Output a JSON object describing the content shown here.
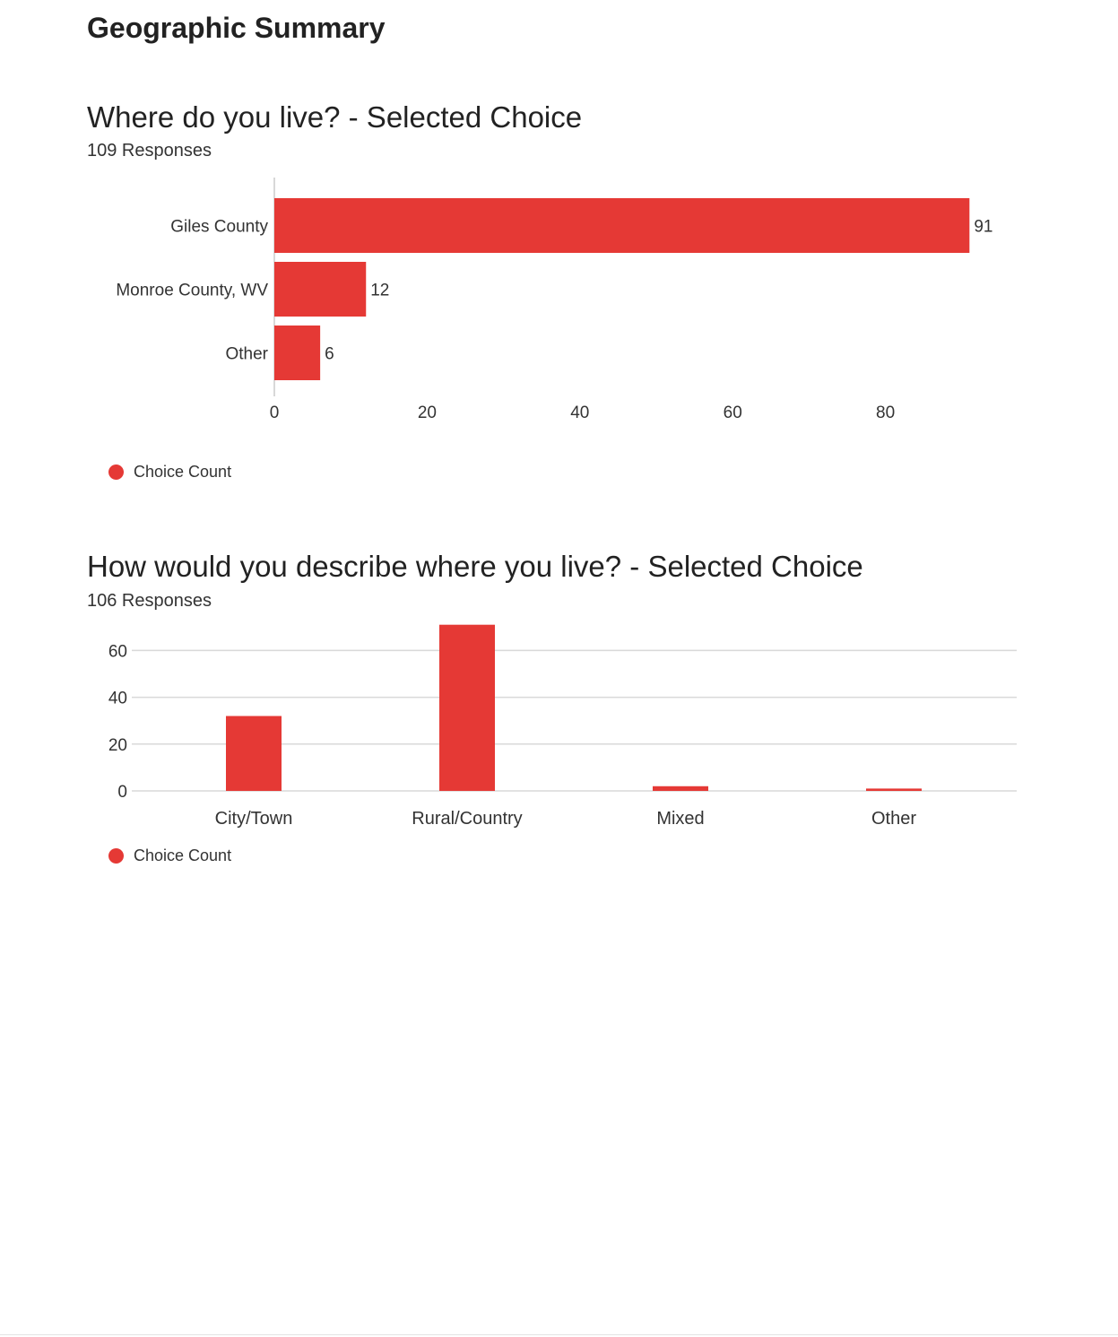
{
  "page": {
    "title": "Geographic Summary"
  },
  "colors": {
    "bar": "#e53935",
    "grid": "#d9d9d9",
    "axis": "#cccccc",
    "text": "#333333"
  },
  "questions": [
    {
      "title": "Where do you live? - Selected Choice",
      "responses": "109 Responses",
      "legend_label": "Choice Count"
    },
    {
      "title": "How would you describe where you live? - Selected Choice",
      "responses": "106 Responses",
      "legend_label": "Choice Count"
    }
  ],
  "chart_data": [
    {
      "type": "bar",
      "orientation": "horizontal",
      "title": "Where do you live? - Selected Choice",
      "subtitle": "109 Responses",
      "categories": [
        "Giles County",
        "Monroe County, WV",
        "Other"
      ],
      "series": [
        {
          "name": "Choice Count",
          "values": [
            91,
            12,
            6
          ]
        }
      ],
      "data_labels": [
        "91",
        "12",
        "6"
      ],
      "xlim": [
        0,
        100
      ],
      "xticks": [
        0,
        20,
        40,
        60,
        80
      ],
      "grid": false,
      "legend": "bottom-left"
    },
    {
      "type": "bar",
      "orientation": "vertical",
      "title": "How would you describe where you live? - Selected Choice",
      "subtitle": "106 Responses",
      "categories": [
        "City/Town",
        "Rural/Country",
        "Mixed",
        "Other"
      ],
      "series": [
        {
          "name": "Choice Count",
          "values": [
            32,
            71,
            2,
            1
          ]
        }
      ],
      "ylim": [
        0,
        71
      ],
      "yticks": [
        0,
        20,
        40,
        60
      ],
      "grid": true,
      "legend": "bottom-left"
    }
  ]
}
